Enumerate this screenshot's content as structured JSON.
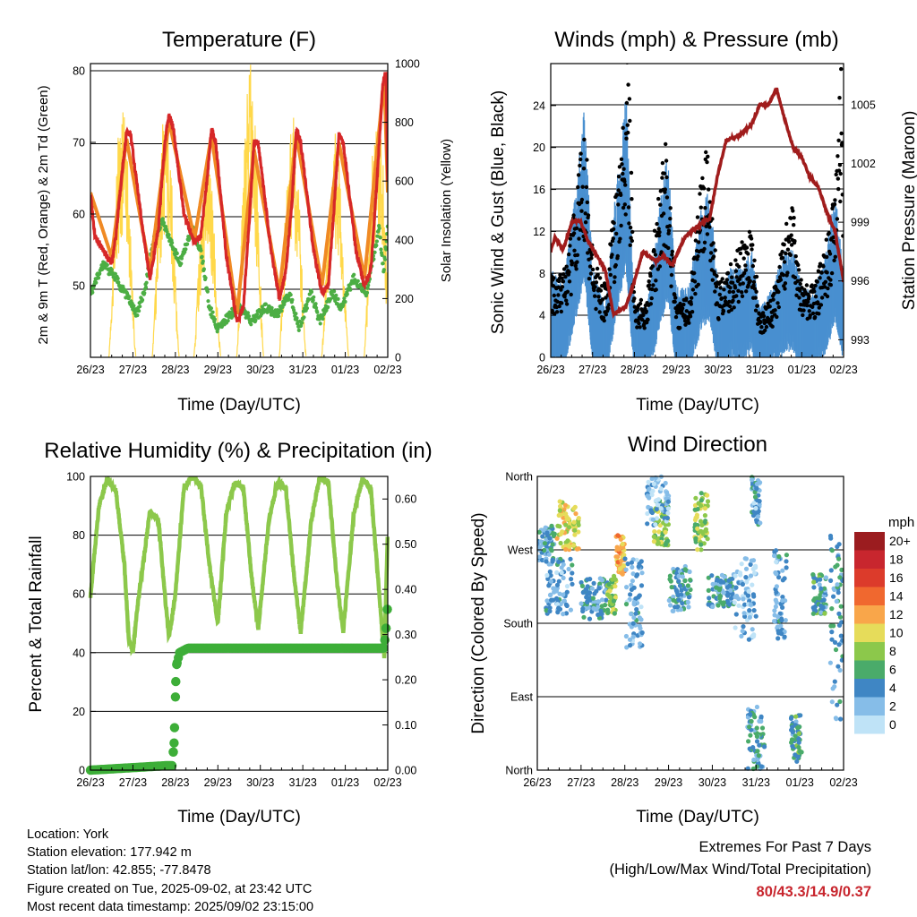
{
  "panels": {
    "temperature": {
      "title": "Temperature (F)",
      "ylabel_left": "2m & 9m T (Red, Orange) & 2m Td (Green)",
      "ylabel_right": "Solar Insolation (Yellow)",
      "xlabel": "Time (Day/UTC)"
    },
    "winds": {
      "title": "Winds (mph) & Pressure (mb)",
      "ylabel_left": "Sonic Wind & Gust (Blue, Black)",
      "ylabel_right": "Station Pressure (Maroon)",
      "xlabel": "Time (Day/UTC)"
    },
    "rh": {
      "title": "Relative Humidity (%) & Precipitation (in)",
      "ylabel_left": "Percent & Total Rainfall",
      "xlabel": "Time (Day/UTC)"
    },
    "direction": {
      "title": "Wind Direction",
      "ylabel_left": "Direction (Colored By Speed)",
      "xlabel": "Time (Day/UTC)",
      "legend_title": "mph"
    }
  },
  "info": {
    "location": "Location: York",
    "elevation": "Station elevation: 177.942 m",
    "latlon": "Station lat/lon: 42.855; -77.8478",
    "created": "Figure created on Tue, 2025-09-02, at 23:42 UTC",
    "timestamp": "Most recent data timestamp: 2025/09/02 23:15:00"
  },
  "extremes": {
    "title": "Extremes For Past 7 Days",
    "subtitle": "(High/Low/Max Wind/Total Precipitation)",
    "values": "80/43.3/14.9/0.37",
    "color": "#c8262e"
  },
  "colors": {
    "temp_2m": "#d62728",
    "temp_9m": "#f08a24",
    "dewpoint": "#4cae44",
    "solar": "#ffd84a",
    "wind": "#4a90d0",
    "gust": "#000000",
    "pressure": "#a01c1c",
    "rh": "#8cc84b",
    "precip": "#3dae38"
  },
  "chart_data": [
    {
      "type": "line",
      "title": "Temperature (F)",
      "xlabel": "Time (Day/UTC)",
      "ylabel": "2m & 9m T (Red, Orange) & 2m Td (Green)",
      "ylabel_right": "Solar Insolation (Yellow)",
      "x_ticks": [
        "26/23",
        "27/23",
        "28/23",
        "29/23",
        "30/23",
        "31/23",
        "01/23",
        "02/23"
      ],
      "xlim_days": [
        0,
        7
      ],
      "ylim": [
        40,
        81
      ],
      "yticks": [
        50,
        60,
        70,
        80
      ],
      "ylim_right": [
        0,
        1000
      ],
      "yticks_right": [
        0,
        200,
        400,
        600,
        800,
        1000
      ],
      "grid": true,
      "series": [
        {
          "name": "2m T",
          "x_days": [
            0,
            0.1,
            0.5,
            0.6,
            0.75,
            0.85,
            0.95,
            1.25,
            1.4,
            1.6,
            1.75,
            1.85,
            1.95,
            2.2,
            2.45,
            2.6,
            2.75,
            2.85,
            2.95,
            3.2,
            3.45,
            3.6,
            3.75,
            3.85,
            3.95,
            4.25,
            4.45,
            4.6,
            4.75,
            4.85,
            4.95,
            5.25,
            5.45,
            5.6,
            5.75,
            5.85,
            5.95,
            6.25,
            6.45,
            6.6,
            6.75,
            6.88,
            6.96,
            7.0
          ],
          "values": [
            63,
            57,
            53,
            57,
            66,
            71.5,
            71,
            57,
            51,
            58,
            70,
            74,
            72,
            60,
            56,
            57,
            65,
            72,
            70,
            54,
            45,
            47,
            60,
            70,
            70,
            55,
            48,
            52,
            62,
            72,
            70,
            55,
            49,
            50,
            62,
            71,
            70,
            55,
            50,
            52,
            65,
            78,
            80,
            63
          ]
        },
        {
          "name": "9m T",
          "x_days": [
            0,
            0.5,
            0.85,
            1.4,
            1.85,
            2.45,
            2.85,
            3.45,
            3.85,
            4.45,
            4.85,
            5.45,
            5.85,
            6.45,
            6.92,
            7.0
          ],
          "values": [
            63,
            54,
            70.5,
            52,
            73,
            56.5,
            71,
            46,
            69,
            49,
            71,
            50,
            70,
            51,
            79,
            63
          ]
        },
        {
          "name": "2m Td",
          "x_days": [
            0,
            0.3,
            0.6,
            0.9,
            1.1,
            1.3,
            1.5,
            1.7,
            1.85,
            2.1,
            2.4,
            2.6,
            2.8,
            3.0,
            3.3,
            3.5,
            3.8,
            4.1,
            4.4,
            4.7,
            4.9,
            5.2,
            5.4,
            5.7,
            5.9,
            6.2,
            6.5,
            6.8,
            6.9,
            7.0
          ],
          "values": [
            49,
            53,
            51,
            48,
            46,
            50,
            57,
            59,
            57,
            53,
            58,
            55,
            47,
            44,
            46,
            47,
            45,
            47,
            46,
            49,
            44,
            49,
            45,
            49,
            47,
            51,
            49,
            58,
            52,
            58
          ]
        },
        {
          "name": "Solar Insolation",
          "peaks_x_days": [
            0.75,
            1.77,
            2.75,
            3.76,
            4.76,
            5.76,
            6.76
          ],
          "peak_values": [
            880,
            860,
            700,
            1010,
            850,
            780,
            880
          ]
        }
      ]
    },
    {
      "type": "line",
      "title": "Winds (mph) & Pressure (mb)",
      "xlabel": "Time (Day/UTC)",
      "ylabel": "Sonic Wind & Gust (Blue, Black)",
      "ylabel_right": "Station Pressure (Maroon)",
      "x_ticks": [
        "26/23",
        "27/23",
        "28/23",
        "29/23",
        "30/23",
        "31/23",
        "01/23",
        "02/23"
      ],
      "xlim_days": [
        0,
        7
      ],
      "ylim": [
        0,
        28
      ],
      "yticks": [
        0,
        4,
        8,
        12,
        16,
        20,
        24
      ],
      "ylim_right": [
        992.1,
        1007.1
      ],
      "yticks_right": [
        993,
        996,
        999,
        1002,
        1005
      ],
      "grid": true,
      "series": [
        {
          "name": "Wind",
          "x_days": [
            0,
            0.3,
            0.6,
            0.8,
            1.0,
            1.3,
            1.6,
            1.8,
            2.0,
            2.3,
            2.6,
            2.8,
            3.0,
            3.3,
            3.6,
            3.8,
            4.0,
            4.3,
            4.6,
            4.8,
            5.0,
            5.3,
            5.6,
            5.8,
            6.0,
            6.3,
            6.6,
            6.8,
            7.0
          ],
          "values": [
            4,
            3,
            8,
            12,
            4,
            2,
            9,
            13,
            2,
            2,
            7,
            10,
            3,
            3,
            7,
            8,
            3,
            4,
            4,
            5,
            2,
            3,
            5,
            5,
            3,
            3,
            5,
            8,
            4
          ]
        },
        {
          "name": "Gust",
          "x_days": [
            0,
            0.3,
            0.6,
            0.8,
            1.0,
            1.3,
            1.7,
            1.85,
            2.0,
            2.3,
            2.6,
            2.75,
            3.0,
            3.3,
            3.6,
            3.75,
            4.0,
            4.3,
            4.6,
            4.8,
            5.0,
            5.3,
            5.6,
            5.8,
            6.0,
            6.3,
            6.6,
            6.8,
            6.95,
            7.0
          ],
          "values": [
            7,
            7,
            13,
            20,
            9,
            6,
            18,
            26,
            5,
            5,
            14,
            19,
            5,
            5,
            15,
            18,
            6,
            8,
            10,
            11,
            4,
            5,
            11,
            13,
            6,
            6,
            10,
            14,
            25,
            8
          ]
        },
        {
          "name": "Station Pressure",
          "x_days": [
            0,
            0.1,
            0.3,
            0.5,
            0.7,
            0.9,
            1.1,
            1.3,
            1.5,
            1.8,
            2.0,
            2.2,
            2.5,
            2.7,
            2.9,
            3.2,
            3.5,
            3.8,
            4.0,
            4.2,
            4.5,
            4.8,
            5.0,
            5.2,
            5.4,
            5.6,
            5.8,
            6.0,
            6.2,
            6.4,
            6.6,
            6.8,
            7.0
          ],
          "values": [
            997.5,
            998.2,
            997.6,
            999.0,
            999.1,
            998.0,
            997.3,
            996.6,
            994.3,
            994.7,
            996.0,
            997.5,
            997.0,
            997.3,
            996.8,
            998.2,
            998.8,
            999.2,
            1001.5,
            1003.2,
            1003.4,
            1004.0,
            1005.0,
            1005.0,
            1005.8,
            1004.2,
            1002.8,
            1002.3,
            1001.3,
            1000.8,
            999.5,
            998.5,
            996.0
          ]
        }
      ]
    },
    {
      "type": "line",
      "title": "Relative Humidity (%) & Precipitation (in)",
      "xlabel": "Time (Day/UTC)",
      "ylabel": "Percent & Total Rainfall",
      "x_ticks": [
        "26/23",
        "27/23",
        "28/23",
        "29/23",
        "30/23",
        "31/23",
        "01/23",
        "02/23"
      ],
      "xlim_days": [
        0,
        7
      ],
      "ylim": [
        0,
        100
      ],
      "yticks": [
        0,
        20,
        40,
        60,
        80,
        100
      ],
      "ylim_right": [
        0,
        0.65
      ],
      "yticks_right": [
        0.0,
        0.1,
        0.2,
        0.3,
        0.4,
        0.5,
        0.6
      ],
      "grid": true,
      "series": [
        {
          "name": "RH",
          "x_days": [
            0,
            0.2,
            0.4,
            0.6,
            0.8,
            0.9,
            1.0,
            1.1,
            1.4,
            1.6,
            1.75,
            1.85,
            2.0,
            2.2,
            2.4,
            2.6,
            2.8,
            3.0,
            3.2,
            3.4,
            3.6,
            3.8,
            3.95,
            4.2,
            4.4,
            4.6,
            4.8,
            4.95,
            5.2,
            5.4,
            5.6,
            5.8,
            5.95,
            6.2,
            6.4,
            6.6,
            6.8,
            6.92,
            7.0
          ],
          "values": [
            59,
            90,
            99,
            95,
            70,
            45,
            40,
            55,
            88,
            85,
            60,
            45,
            60,
            96,
            100,
            97,
            70,
            50,
            88,
            98,
            96,
            65,
            48,
            85,
            98,
            96,
            65,
            47,
            85,
            100,
            98,
            65,
            47,
            87,
            99,
            96,
            60,
            38,
            82
          ]
        },
        {
          "name": "Total Rainfall",
          "x_days": [
            0,
            1.8,
            1.92,
            1.97,
            2.02,
            2.1,
            2.3,
            3.0,
            6.9,
            6.95,
            7.0
          ],
          "values": [
            0.0,
            0.01,
            0.01,
            0.06,
            0.23,
            0.26,
            0.27,
            0.27,
            0.27,
            0.3,
            0.37
          ]
        }
      ]
    },
    {
      "type": "scatter",
      "title": "Wind Direction",
      "xlabel": "Time (Day/UTC)",
      "ylabel": "Direction (Colored By Speed)",
      "x_ticks": [
        "26/23",
        "27/23",
        "28/23",
        "29/23",
        "30/23",
        "31/23",
        "01/23",
        "02/23"
      ],
      "xlim_days": [
        0,
        7
      ],
      "y_ticks": [
        "North",
        "East",
        "South",
        "West",
        "North"
      ],
      "ylim_degrees": [
        0,
        360
      ],
      "grid": true,
      "colorbar": {
        "title": "mph",
        "labels": [
          "20+",
          "18",
          "16",
          "14",
          "12",
          "10",
          "8",
          "6",
          "4",
          "2",
          "0"
        ],
        "colors": [
          "#9b1c1f",
          "#c8262e",
          "#dc3b2b",
          "#f0682f",
          "#f9a64a",
          "#e6dc5a",
          "#8cc84b",
          "#4aab6a",
          "#3f86c4",
          "#86bde8",
          "#bfe3f7"
        ]
      },
      "clusters": [
        {
          "x_days": [
            0,
            0.4
          ],
          "deg": [
            255,
            300
          ],
          "speed": 4
        },
        {
          "x_days": [
            0.45,
            0.95
          ],
          "deg": [
            270,
            330
          ],
          "speed": 10
        },
        {
          "x_days": [
            0.2,
            0.8
          ],
          "deg": [
            190,
            260
          ],
          "speed": 3
        },
        {
          "x_days": [
            1.0,
            1.6
          ],
          "deg": [
            185,
            235
          ],
          "speed": 4
        },
        {
          "x_days": [
            1.6,
            1.8
          ],
          "deg": [
            190,
            240
          ],
          "speed": 8
        },
        {
          "x_days": [
            1.8,
            2.0
          ],
          "deg": [
            240,
            290
          ],
          "speed": 12
        },
        {
          "x_days": [
            2.0,
            2.4
          ],
          "deg": [
            150,
            260
          ],
          "speed": 3
        },
        {
          "x_days": [
            2.65,
            3.0
          ],
          "deg": [
            275,
            330
          ],
          "speed": 8
        },
        {
          "x_days": [
            2.5,
            3.0
          ],
          "deg": [
            300,
            360
          ],
          "speed": 2
        },
        {
          "x_days": [
            3.0,
            3.5
          ],
          "deg": [
            195,
            250
          ],
          "speed": 4
        },
        {
          "x_days": [
            3.6,
            3.9
          ],
          "deg": [
            270,
            340
          ],
          "speed": 8
        },
        {
          "x_days": [
            3.9,
            4.5
          ],
          "deg": [
            200,
            240
          ],
          "speed": 4
        },
        {
          "x_days": [
            4.5,
            5.0
          ],
          "deg": [
            160,
            260
          ],
          "speed": 2
        },
        {
          "x_days": [
            4.8,
            5.2
          ],
          "deg": [
            0,
            80
          ],
          "speed": 4
        },
        {
          "x_days": [
            4.9,
            5.1
          ],
          "deg": [
            300,
            360
          ],
          "speed": 3
        },
        {
          "x_days": [
            5.4,
            5.7
          ],
          "deg": [
            160,
            270
          ],
          "speed": 3
        },
        {
          "x_days": [
            5.8,
            6.05
          ],
          "deg": [
            10,
            70
          ],
          "speed": 5
        },
        {
          "x_days": [
            6.3,
            6.6
          ],
          "deg": [
            190,
            240
          ],
          "speed": 5
        },
        {
          "x_days": [
            6.7,
            7.0
          ],
          "deg": [
            60,
            300
          ],
          "speed": 4
        }
      ]
    }
  ]
}
